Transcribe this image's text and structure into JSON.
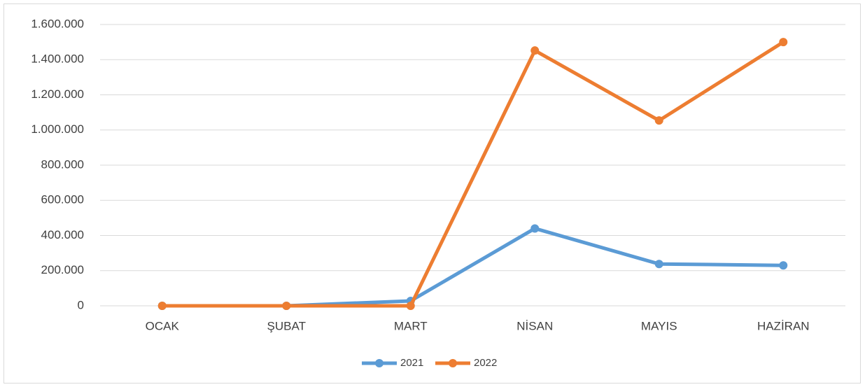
{
  "chart_data": {
    "type": "line",
    "categories": [
      "OCAK",
      "ŞUBAT",
      "MART",
      "NİSAN",
      "MAYIS",
      "HAZİRAN"
    ],
    "series": [
      {
        "name": "2021",
        "color": "#5b9bd5",
        "values": [
          0,
          0,
          28000,
          440000,
          238000,
          230000
        ]
      },
      {
        "name": "2022",
        "color": "#ed7d31",
        "values": [
          0,
          0,
          0,
          1452000,
          1054000,
          1500000
        ]
      }
    ],
    "ylim": [
      0,
      1600000
    ],
    "yticks": [
      0,
      {
        "value": 200000,
        "label": "200.000"
      },
      {
        "value": 400000,
        "label": "400.000"
      },
      {
        "value": 600000,
        "label": "600.000"
      },
      {
        "value": 800000,
        "label": "800.000"
      },
      {
        "value": 1000000,
        "label": "1.000.000"
      },
      {
        "value": 1200000,
        "label": "1.200.000"
      },
      {
        "value": 1400000,
        "label": "1.400.000"
      },
      {
        "value": 1600000,
        "label": "1.600.000"
      }
    ],
    "grid": true,
    "legend": "bottom"
  }
}
